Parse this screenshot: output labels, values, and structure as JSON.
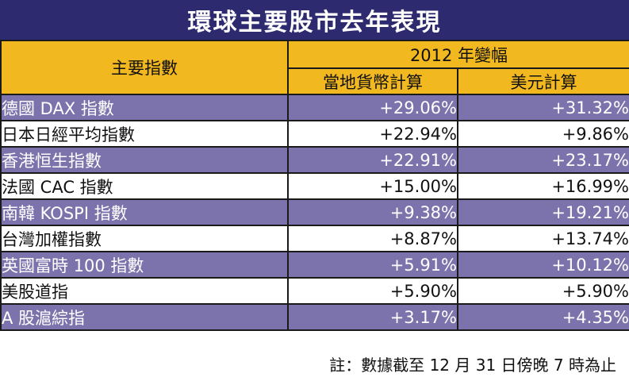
{
  "title": "環球主要股市去年表現",
  "header": {
    "index_label": "主要指數",
    "group_label": "2012 年變幅",
    "local_label": "當地貨幣計算",
    "usd_label": "美元計算"
  },
  "rows": [
    {
      "name": "德國 DAX 指數",
      "local": "+29.06%",
      "usd": "+31.32%"
    },
    {
      "name": "日本日經平均指數",
      "local": "+22.94%",
      "usd": "+9.86%"
    },
    {
      "name": "香港恒生指數",
      "local": "+22.91%",
      "usd": "+23.17%"
    },
    {
      "name": "法國 CAC 指數",
      "local": "+15.00%",
      "usd": "+16.99%"
    },
    {
      "name": "南韓 KOSPI 指數",
      "local": "+9.38%",
      "usd": "+19.21%"
    },
    {
      "name": "台灣加權指數",
      "local": "+8.87%",
      "usd": "+13.74%"
    },
    {
      "name": "英國富時 100 指數",
      "local": "+5.91%",
      "usd": "+10.12%"
    },
    {
      "name": "美股道指",
      "local": "+5.90%",
      "usd": "+5.90%"
    },
    {
      "name": "A 股滬綜指",
      "local": "+3.17%",
      "usd": "+4.35%"
    }
  ],
  "note": "註：數據截至 12 月 31 日傍晚 7 時為止",
  "colors": {
    "title_bg": "#2d2a70",
    "header_bg": "#f2b81f",
    "row_alt_bg": "#7d73ac",
    "row_plain_bg": "#ffffff"
  }
}
